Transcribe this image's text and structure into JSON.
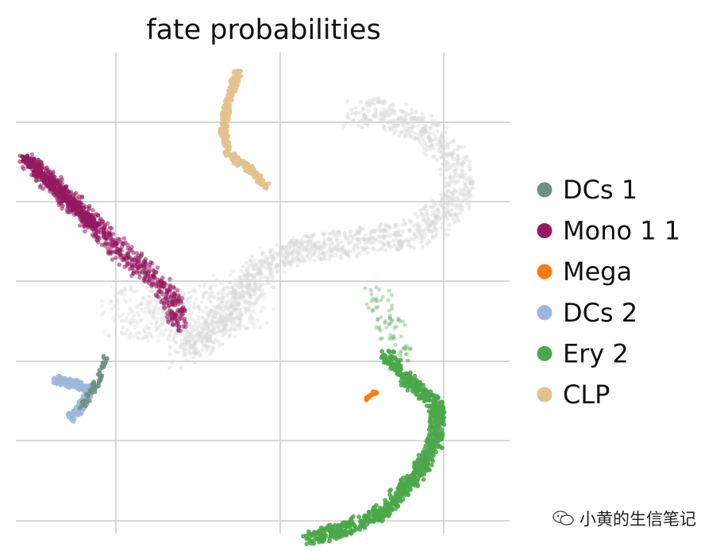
{
  "chart_data": {
    "type": "scatter",
    "title": "fate probabilities",
    "xlabel": "",
    "ylabel": "",
    "grid": true,
    "legend_position": "right",
    "xlim": [
      0,
      10
    ],
    "ylim": [
      0,
      10
    ],
    "series": [
      {
        "name": "DCs 1",
        "color": "#6b9283"
      },
      {
        "name": "Mono 1 1",
        "color": "#951a61"
      },
      {
        "name": "Mega",
        "color": "#fe7b13"
      },
      {
        "name": "DCs 2",
        "color": "#9db7dc"
      },
      {
        "name": "Ery 2",
        "color": "#4aa84a"
      },
      {
        "name": "CLP",
        "color": "#e3c28e"
      }
    ],
    "background_color": "#d9d9d9",
    "trajectories": {
      "background": [
        [
          6.9,
          8.7
        ],
        [
          7.2,
          8.8
        ],
        [
          7.6,
          8.7
        ],
        [
          8.0,
          8.5
        ],
        [
          8.5,
          8.2
        ],
        [
          8.8,
          7.8
        ],
        [
          9.0,
          7.4
        ],
        [
          8.9,
          6.9
        ],
        [
          8.5,
          6.5
        ],
        [
          7.9,
          6.2
        ],
        [
          7.2,
          6.1
        ],
        [
          6.5,
          6.0
        ],
        [
          5.8,
          5.9
        ],
        [
          5.2,
          5.7
        ],
        [
          4.8,
          5.3
        ],
        [
          4.4,
          4.7
        ],
        [
          3.9,
          4.1
        ],
        [
          3.3,
          3.7
        ]
      ],
      "DCs 1": [
        [
          1.8,
          3.7
        ],
        [
          1.7,
          3.2
        ],
        [
          1.5,
          2.9
        ],
        [
          1.3,
          2.6
        ]
      ],
      "Mono 1 1": [
        [
          0.2,
          7.8
        ],
        [
          0.6,
          7.4
        ],
        [
          1.1,
          6.9
        ],
        [
          1.6,
          6.4
        ],
        [
          2.2,
          5.8
        ],
        [
          2.8,
          5.3
        ],
        [
          3.2,
          4.8
        ],
        [
          3.3,
          4.3
        ]
      ],
      "Mega": [
        [
          7.1,
          2.8
        ],
        [
          7.3,
          2.95
        ]
      ],
      "DCs 2": [
        [
          0.8,
          3.2
        ],
        [
          1.2,
          3.1
        ],
        [
          1.5,
          3.0
        ],
        [
          1.3,
          2.6
        ],
        [
          1.1,
          2.4
        ]
      ],
      "Ery 2": [
        [
          7.5,
          3.7
        ],
        [
          7.9,
          3.2
        ],
        [
          8.3,
          2.9
        ],
        [
          8.55,
          2.6
        ],
        [
          8.5,
          1.9
        ],
        [
          8.1,
          1.2
        ],
        [
          7.5,
          0.5
        ],
        [
          6.7,
          0.1
        ],
        [
          5.9,
          -0.1
        ]
      ],
      "CLP": [
        [
          4.5,
          9.6
        ],
        [
          4.3,
          9.0
        ],
        [
          4.2,
          8.4
        ],
        [
          4.3,
          7.9
        ],
        [
          4.7,
          7.6
        ],
        [
          5.1,
          7.2
        ]
      ]
    }
  },
  "watermark": {
    "text": "小黄的生信笔记"
  }
}
